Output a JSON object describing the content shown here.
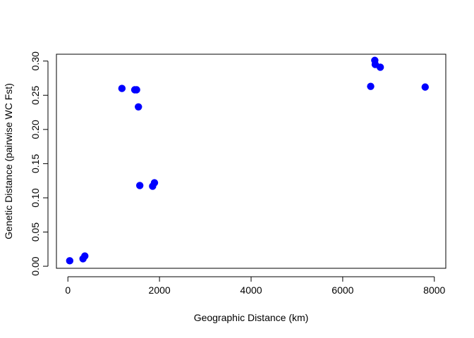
{
  "chart_data": {
    "type": "scatter",
    "title": "",
    "xlabel": "Geographic Distance (km)",
    "ylabel": "Genetic Distance (pairwise WC Fst)",
    "xlim": [
      -250,
      8250
    ],
    "ylim": [
      -0.003,
      0.31
    ],
    "x_ticks": [
      0,
      2000,
      4000,
      6000,
      8000
    ],
    "x_tick_labels": [
      "0",
      "2000",
      "4000",
      "6000",
      "8000"
    ],
    "y_ticks": [
      0.0,
      0.05,
      0.1,
      0.15,
      0.2,
      0.25,
      0.3
    ],
    "y_tick_labels": [
      "0.00",
      "0.05",
      "0.10",
      "0.15",
      "0.20",
      "0.25",
      "0.30"
    ],
    "grid": false,
    "legend": "none",
    "point_color": "#0000ff",
    "points": [
      {
        "x": 40,
        "y": 0.008
      },
      {
        "x": 330,
        "y": 0.011
      },
      {
        "x": 370,
        "y": 0.015
      },
      {
        "x": 1180,
        "y": 0.26
      },
      {
        "x": 1460,
        "y": 0.258
      },
      {
        "x": 1500,
        "y": 0.258
      },
      {
        "x": 1540,
        "y": 0.233
      },
      {
        "x": 1570,
        "y": 0.118
      },
      {
        "x": 1850,
        "y": 0.117
      },
      {
        "x": 1890,
        "y": 0.122
      },
      {
        "x": 6610,
        "y": 0.263
      },
      {
        "x": 6700,
        "y": 0.301
      },
      {
        "x": 6710,
        "y": 0.295
      },
      {
        "x": 6820,
        "y": 0.291
      },
      {
        "x": 7800,
        "y": 0.262
      }
    ]
  }
}
